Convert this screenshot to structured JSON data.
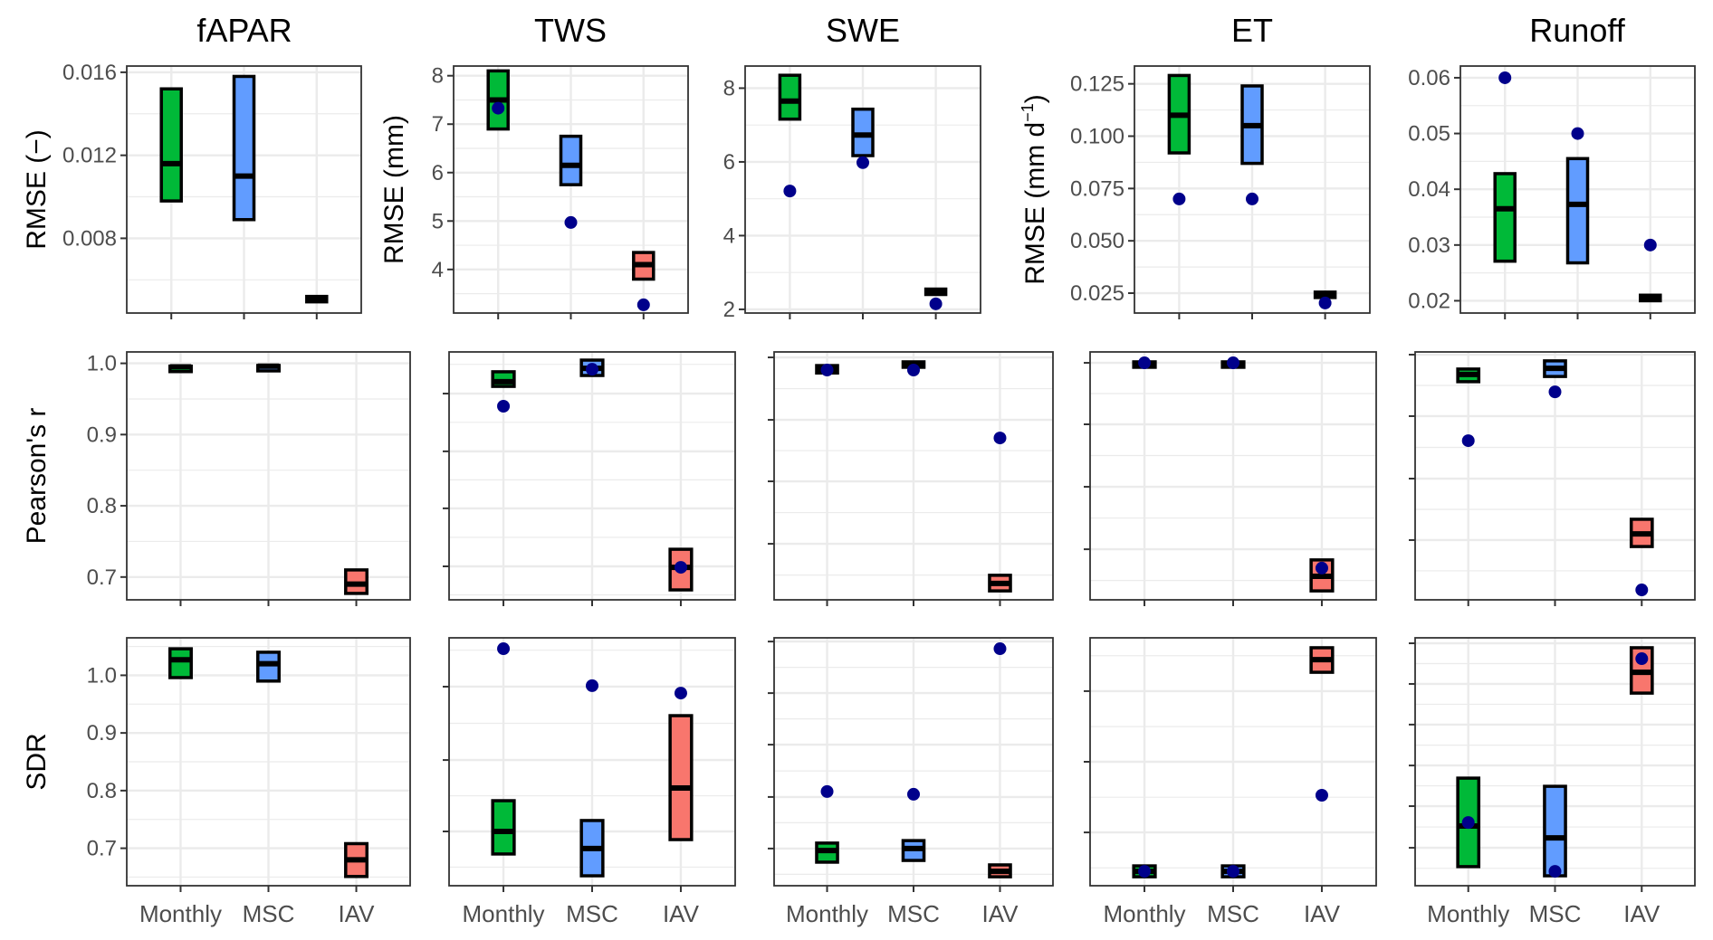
{
  "chart_data": {
    "type": "box-summary",
    "description": "Grid of range bars (box with median line) and reference points per metric, variable and temporal scale",
    "columns": [
      "fAPAR",
      "TWS",
      "SWE",
      "ET",
      "Runoff"
    ],
    "categories": [
      "Monthly",
      "MSC",
      "IAV"
    ],
    "colors": {
      "Monthly": "#00b938",
      "MSC": "#619cff",
      "IAV": "#f8766d",
      "point": "#00008b",
      "median": "#000000",
      "grid": "#ebebeb",
      "border": "#333333"
    },
    "rows": [
      {
        "metric": "RMSE",
        "panels": [
          {
            "variable": "fAPAR",
            "ylabel": "RMSE (−)",
            "y_units": "data",
            "ylim": [
              0.0044,
              0.0163
            ],
            "yticks": [
              0.008,
              0.012,
              0.016
            ],
            "ytick_labels": [
              "0.008",
              "0.012",
              "0.016"
            ],
            "yminor": [
              0.006,
              0.01,
              0.014
            ],
            "boxes": [
              {
                "category": "Monthly",
                "low": 0.0098,
                "median": 0.0116,
                "high": 0.0152,
                "point": null
              },
              {
                "category": "MSC",
                "low": 0.0089,
                "median": 0.011,
                "high": 0.0158,
                "point": null
              },
              {
                "category": "IAV",
                "low": 0.005,
                "median": 0.0051,
                "high": 0.0052,
                "point": null
              }
            ]
          },
          {
            "variable": "TWS",
            "ylabel": "RMSE (mm)",
            "y_units": "data",
            "ylim": [
              3.1,
              8.2
            ],
            "yticks": [
              4,
              5,
              6,
              7,
              8
            ],
            "ytick_labels": [
              "4",
              "5",
              "6",
              "7",
              "8"
            ],
            "yminor": [
              3.5,
              4.5,
              5.5,
              6.5,
              7.5
            ],
            "boxes": [
              {
                "category": "Monthly",
                "low": 6.9,
                "median": 7.5,
                "high": 8.1,
                "point": 7.33
              },
              {
                "category": "MSC",
                "low": 5.75,
                "median": 6.15,
                "high": 6.75,
                "point": 4.97
              },
              {
                "category": "IAV",
                "low": 3.8,
                "median": 4.1,
                "high": 4.35,
                "point": 3.27
              }
            ]
          },
          {
            "variable": "SWE",
            "ylabel": "",
            "y_units": "data",
            "ylim": [
              1.9,
              8.6
            ],
            "yticks": [
              2,
              4,
              6,
              8
            ],
            "ytick_labels": [
              "2",
              "4",
              "6",
              "8"
            ],
            "yminor": [
              3,
              5,
              7
            ],
            "boxes": [
              {
                "category": "Monthly",
                "low": 7.16,
                "median": 7.65,
                "high": 8.35,
                "point": 5.21
              },
              {
                "category": "MSC",
                "low": 6.17,
                "median": 6.73,
                "high": 7.43,
                "point": 5.98
              },
              {
                "category": "IAV",
                "low": 2.45,
                "median": 2.5,
                "high": 2.55,
                "point": 2.15
              }
            ]
          },
          {
            "variable": "ET",
            "ylabel": "RMSE (mm d^-1)",
            "y_units": "data",
            "ylim": [
              0.0155,
              0.1335
            ],
            "yticks": [
              0.025,
              0.05,
              0.075,
              0.1,
              0.125
            ],
            "ytick_labels": [
              "0.025",
              "0.050",
              "0.075",
              "0.100",
              "0.125"
            ],
            "yminor": [
              0.0375,
              0.0625,
              0.0875,
              0.1125
            ],
            "boxes": [
              {
                "category": "Monthly",
                "low": 0.092,
                "median": 0.11,
                "high": 0.129,
                "point": 0.07
              },
              {
                "category": "MSC",
                "low": 0.087,
                "median": 0.105,
                "high": 0.124,
                "point": 0.07
              },
              {
                "category": "IAV",
                "low": 0.0235,
                "median": 0.0245,
                "high": 0.0255,
                "point": 0.0203
              }
            ]
          },
          {
            "variable": "Runoff",
            "ylabel": "",
            "y_units": "data",
            "ylim": [
              0.0178,
              0.0621
            ],
            "yticks": [
              0.02,
              0.03,
              0.04,
              0.05,
              0.06
            ],
            "ytick_labels": [
              "0.02",
              "0.03",
              "0.04",
              "0.05",
              "0.06"
            ],
            "yminor": [
              0.025,
              0.035,
              0.045,
              0.055
            ],
            "boxes": [
              {
                "category": "Monthly",
                "low": 0.0271,
                "median": 0.0365,
                "high": 0.0428,
                "point": 0.06
              },
              {
                "category": "MSC",
                "low": 0.0268,
                "median": 0.0373,
                "high": 0.0455,
                "point": 0.05
              },
              {
                "category": "IAV",
                "low": 0.02,
                "median": 0.0205,
                "high": 0.021,
                "point": 0.03
              }
            ]
          }
        ]
      },
      {
        "metric": "Pearson's r",
        "panels": [
          {
            "variable": "fAPAR",
            "ylabel": "Pearson's r",
            "y_units": "data",
            "ylim": [
              0.668,
              1.016
            ],
            "yticks": [
              0.7,
              0.8,
              0.9,
              1.0
            ],
            "ytick_labels": [
              "0.7",
              "0.8",
              "0.9",
              "1.0"
            ],
            "yminor": [
              0.75,
              0.85,
              0.95
            ],
            "boxes": [
              {
                "category": "Monthly",
                "low": 0.994,
                "median": 0.995,
                "high": 0.996,
                "point": null
              },
              {
                "category": "MSC",
                "low": 0.995,
                "median": 0.996,
                "high": 0.997,
                "point": null
              },
              {
                "category": "IAV",
                "low": 0.677,
                "median": 0.69,
                "high": 0.71,
                "point": null
              }
            ]
          },
          {
            "variable": "TWS",
            "ylabel": "",
            "y_units": "relative",
            "ylim": [
              0,
              1
            ],
            "yticks": [
              0.135,
              0.369,
              0.599,
              0.832
            ],
            "ytick_labels": [],
            "yminor": [
              0.02,
              0.252,
              0.484,
              0.716,
              0.95
            ],
            "boxes": [
              {
                "category": "Monthly",
                "low": 0.861,
                "median": 0.88,
                "high": 0.92,
                "point": 0.781
              },
              {
                "category": "MSC",
                "low": 0.905,
                "median": 0.934,
                "high": 0.967,
                "point": 0.93
              },
              {
                "category": "IAV",
                "low": 0.04,
                "median": 0.131,
                "high": 0.204,
                "point": 0.131
              }
            ]
          },
          {
            "variable": "SWE",
            "ylabel": "",
            "y_units": "relative",
            "ylim": [
              0,
              1
            ],
            "yticks": [
              0.226,
              0.478,
              0.726,
              0.978
            ],
            "ytick_labels": [],
            "yminor": [
              0.1,
              0.352,
              0.602,
              0.852
            ],
            "boxes": [
              {
                "category": "Monthly",
                "low": 0.915,
                "median": 0.93,
                "high": 0.945,
                "point": 0.927
              },
              {
                "category": "MSC",
                "low": 0.94,
                "median": 0.95,
                "high": 0.96,
                "point": 0.927
              },
              {
                "category": "IAV",
                "low": 0.036,
                "median": 0.066,
                "high": 0.099,
                "point": 0.653
              }
            ]
          },
          {
            "variable": "ET",
            "ylabel": "",
            "y_units": "relative",
            "ylim": [
              0,
              1
            ],
            "yticks": [
              0.204,
              0.456,
              0.708,
              0.956
            ],
            "ytick_labels": [],
            "yminor": [
              0.078,
              0.33,
              0.582,
              0.832
            ],
            "boxes": [
              {
                "category": "Monthly",
                "low": 0.945,
                "median": 0.952,
                "high": 0.96,
                "point": 0.956
              },
              {
                "category": "MSC",
                "low": 0.945,
                "median": 0.952,
                "high": 0.96,
                "point": 0.956
              },
              {
                "category": "IAV",
                "low": 0.036,
                "median": 0.095,
                "high": 0.161,
                "point": 0.128
              }
            ]
          },
          {
            "variable": "Runoff",
            "ylabel": "",
            "y_units": "relative",
            "ylim": [
              0,
              1
            ],
            "yticks": [
              0.241,
              0.489,
              0.741,
              0.989
            ],
            "ytick_labels": [],
            "yminor": [
              0.117,
              0.365,
              0.615,
              0.865
            ],
            "boxes": [
              {
                "category": "Monthly",
                "low": 0.88,
                "median": 0.909,
                "high": 0.931,
                "point": 0.642
              },
              {
                "category": "MSC",
                "low": 0.901,
                "median": 0.934,
                "high": 0.964,
                "point": 0.839
              },
              {
                "category": "IAV",
                "low": 0.215,
                "median": 0.266,
                "high": 0.325,
                "point": 0.04
              }
            ]
          }
        ]
      },
      {
        "metric": "SDR",
        "panels": [
          {
            "variable": "fAPAR",
            "ylabel": "SDR",
            "y_units": "data",
            "ylim": [
              0.635,
              1.065
            ],
            "yticks": [
              0.7,
              0.8,
              0.9,
              1.0
            ],
            "ytick_labels": [
              "0.7",
              "0.8",
              "0.9",
              "1.0"
            ],
            "yminor": [
              0.65,
              0.75,
              0.85,
              0.95,
              1.05
            ],
            "boxes": [
              {
                "category": "Monthly",
                "low": 0.996,
                "median": 1.027,
                "high": 1.046,
                "point": null
              },
              {
                "category": "MSC",
                "low": 0.99,
                "median": 1.02,
                "high": 1.04,
                "point": null
              },
              {
                "category": "IAV",
                "low": 0.651,
                "median": 0.68,
                "high": 0.708,
                "point": null
              }
            ]
          },
          {
            "variable": "TWS",
            "ylabel": "",
            "y_units": "relative",
            "ylim": [
              0,
              1
            ],
            "yticks": [
              0.219,
              0.507,
              0.803
            ],
            "ytick_labels": [],
            "yminor": [
              0.075,
              0.363,
              0.655,
              0.95
            ],
            "boxes": [
              {
                "category": "Monthly",
                "low": 0.128,
                "median": 0.219,
                "high": 0.343,
                "point": 0.956
              },
              {
                "category": "MSC",
                "low": 0.04,
                "median": 0.15,
                "high": 0.263,
                "point": 0.807
              },
              {
                "category": "IAV",
                "low": 0.186,
                "median": 0.394,
                "high": 0.686,
                "point": 0.777
              }
            ]
          },
          {
            "variable": "SWE",
            "ylabel": "",
            "y_units": "relative",
            "ylim": [
              0,
              1
            ],
            "yticks": [
              0.15,
              0.358,
              0.569,
              0.777,
              0.985
            ],
            "ytick_labels": [],
            "yminor": [
              0.046,
              0.254,
              0.463,
              0.673,
              0.881
            ],
            "boxes": [
              {
                "category": "Monthly",
                "low": 0.095,
                "median": 0.142,
                "high": 0.172,
                "point": 0.38
              },
              {
                "category": "MSC",
                "low": 0.102,
                "median": 0.15,
                "high": 0.182,
                "point": 0.369
              },
              {
                "category": "IAV",
                "low": 0.036,
                "median": 0.058,
                "high": 0.084,
                "point": 0.956
              }
            ]
          },
          {
            "variable": "ET",
            "ylabel": "",
            "y_units": "relative",
            "ylim": [
              0,
              1
            ],
            "yticks": [
              0.215,
              0.5,
              0.785
            ],
            "ytick_labels": [],
            "yminor": [
              0.072,
              0.357,
              0.642,
              0.928
            ],
            "boxes": [
              {
                "category": "Monthly",
                "low": 0.036,
                "median": 0.058,
                "high": 0.08,
                "point": 0.058
              },
              {
                "category": "MSC",
                "low": 0.036,
                "median": 0.058,
                "high": 0.08,
                "point": 0.058
              },
              {
                "category": "IAV",
                "low": 0.861,
                "median": 0.912,
                "high": 0.96,
                "point": 0.365
              }
            ]
          },
          {
            "variable": "Runoff",
            "ylabel": "",
            "y_units": "relative",
            "ylim": [
              0,
              1
            ],
            "yticks": [
              0.153,
              0.321,
              0.485,
              0.65,
              0.814,
              0.978
            ],
            "ytick_labels": [],
            "yminor": [
              0.07,
              0.237,
              0.403,
              0.567,
              0.732,
              0.896
            ],
            "boxes": [
              {
                "category": "Monthly",
                "low": 0.077,
                "median": 0.241,
                "high": 0.434,
                "point": 0.255
              },
              {
                "category": "MSC",
                "low": 0.04,
                "median": 0.193,
                "high": 0.401,
                "point": 0.058
              },
              {
                "category": "IAV",
                "low": 0.777,
                "median": 0.861,
                "high": 0.96,
                "point": 0.916
              }
            ]
          }
        ]
      }
    ],
    "grid": true,
    "legend": "none"
  }
}
